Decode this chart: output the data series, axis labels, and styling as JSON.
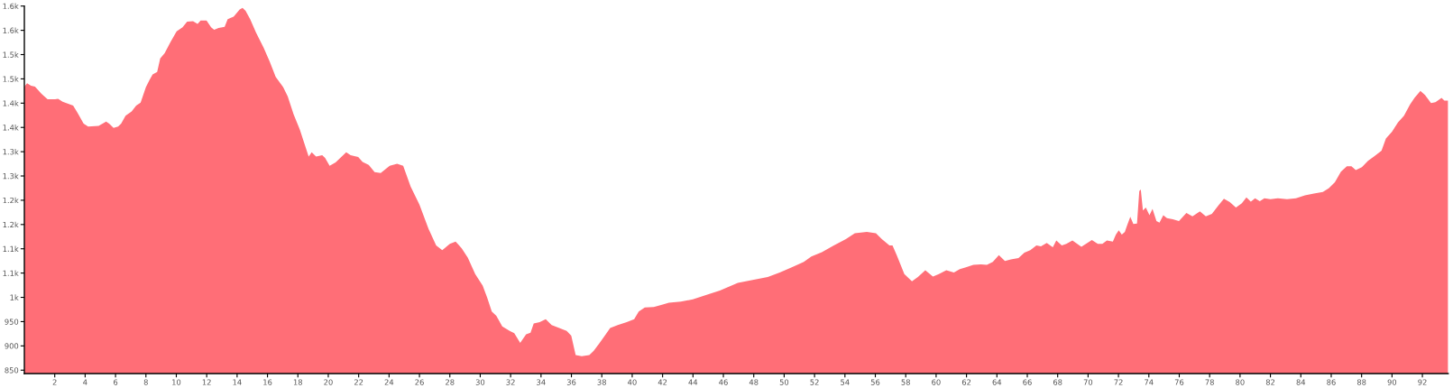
{
  "chart_data": {
    "type": "area",
    "color": "#ff6e77",
    "x": [
      0,
      0.05,
      0.18,
      0.44,
      0.7,
      1.13,
      1.53,
      2.02,
      2.22,
      2.52,
      3.21,
      3.5,
      3.9,
      4.2,
      4.89,
      5.38,
      5.58,
      5.87,
      6.17,
      6.37,
      6.66,
      7.06,
      7.36,
      7.65,
      8.0,
      8.24,
      8.44,
      8.74,
      8.94,
      9.23,
      9.62,
      10.02,
      10.41,
      10.71,
      11.1,
      11.4,
      11.6,
      11.99,
      12.29,
      12.49,
      12.78,
      13.18,
      13.38,
      13.77,
      14.17,
      14.36,
      14.56,
      14.86,
      15.25,
      15.75,
      16.14,
      16.54,
      17.03,
      17.33,
      17.72,
      18.12,
      18.51,
      18.71,
      18.91,
      19.2,
      19.6,
      19.79,
      20.09,
      20.48,
      21.18,
      21.47,
      21.97,
      22.26,
      22.66,
      23.05,
      23.45,
      24.04,
      24.53,
      24.93,
      25.42,
      26.0,
      26.6,
      27.1,
      27.5,
      28.0,
      28.38,
      28.78,
      29.18,
      29.67,
      30.16,
      30.46,
      30.76,
      31.06,
      31.45,
      31.94,
      32.24,
      32.63,
      33.02,
      33.31,
      33.52,
      33.91,
      34.31,
      34.7,
      35.2,
      35.69,
      35.99,
      36.28,
      36.68,
      37.18,
      37.47,
      37.86,
      38.26,
      38.55,
      39.05,
      39.64,
      40.13,
      40.43,
      40.83,
      41.42,
      42.01,
      42.41,
      43.2,
      43.99,
      44.58,
      45.17,
      45.77,
      46.36,
      46.95,
      47.93,
      48.92,
      49.71,
      50.5,
      51.29,
      51.79,
      52.48,
      53.27,
      54.06,
      54.65,
      55.44,
      56.04,
      56.43,
      56.93,
      57.13,
      57.42,
      57.91,
      58.41,
      58.8,
      59.29,
      59.79,
      60.18,
      60.67,
      61.17,
      61.56,
      61.96,
      62.45,
      62.94,
      63.34,
      63.73,
      64.13,
      64.53,
      64.92,
      65.42,
      65.81,
      66.2,
      66.6,
      66.9,
      67.28,
      67.68,
      67.91,
      68.27,
      68.57,
      68.97,
      69.56,
      70.25,
      70.64,
      70.94,
      71.24,
      71.63,
      71.83,
      72.02,
      72.22,
      72.42,
      72.58,
      72.78,
      72.98,
      73.22,
      73.37,
      73.47,
      73.61,
      73.8,
      74.04,
      74.24,
      74.5,
      74.7,
      74.95,
      75.19,
      75.58,
      75.98,
      76.47,
      76.87,
      77.36,
      77.75,
      78.15,
      78.55,
      78.94,
      79.33,
      79.73,
      80.12,
      80.42,
      80.71,
      80.99,
      81.3,
      81.6,
      82.0,
      82.49,
      83.09,
      83.68,
      84.27,
      84.86,
      85.45,
      85.85,
      86.24,
      86.64,
      87.03,
      87.33,
      87.62,
      88.02,
      88.42,
      88.81,
      89.31,
      89.6,
      90.0,
      90.39,
      90.79,
      91.18,
      91.48,
      91.87,
      92.17,
      92.57,
      92.86,
      93.26,
      93.45,
      93.69
    ],
    "values": [
      1433,
      1436,
      1441,
      1436,
      1434,
      1419,
      1408,
      1408,
      1409,
      1403,
      1395,
      1380,
      1358,
      1352,
      1353,
      1362,
      1358,
      1349,
      1352,
      1358,
      1374,
      1383,
      1395,
      1401,
      1433,
      1448,
      1459,
      1464,
      1492,
      1503,
      1526,
      1548,
      1556,
      1568,
      1569,
      1563,
      1570,
      1570,
      1556,
      1551,
      1555,
      1557,
      1573,
      1578,
      1593,
      1596,
      1590,
      1573,
      1545,
      1514,
      1486,
      1454,
      1433,
      1414,
      1377,
      1346,
      1309,
      1290,
      1299,
      1290,
      1293,
      1287,
      1271,
      1278,
      1299,
      1293,
      1289,
      1279,
      1273,
      1258,
      1256,
      1271,
      1275,
      1271,
      1228,
      1191,
      1141,
      1107,
      1097,
      1110,
      1115,
      1101,
      1082,
      1048,
      1024,
      999,
      971,
      962,
      940,
      931,
      926,
      906,
      924,
      927,
      946,
      949,
      955,
      943,
      937,
      931,
      921,
      881,
      879,
      881,
      890,
      906,
      924,
      937,
      943,
      949,
      955,
      971,
      979,
      980,
      985,
      989,
      991,
      996,
      1002,
      1008,
      1014,
      1022,
      1030,
      1036,
      1042,
      1051,
      1062,
      1073,
      1084,
      1093,
      1107,
      1120,
      1132,
      1135,
      1132,
      1120,
      1107,
      1107,
      1086,
      1048,
      1033,
      1042,
      1056,
      1043,
      1048,
      1056,
      1051,
      1058,
      1062,
      1067,
      1068,
      1067,
      1073,
      1087,
      1075,
      1078,
      1081,
      1092,
      1097,
      1107,
      1105,
      1112,
      1103,
      1117,
      1107,
      1110,
      1117,
      1104,
      1118,
      1110,
      1110,
      1117,
      1115,
      1129,
      1138,
      1129,
      1135,
      1149,
      1166,
      1151,
      1152,
      1219,
      1222,
      1179,
      1185,
      1169,
      1182,
      1157,
      1154,
      1169,
      1163,
      1161,
      1157,
      1174,
      1167,
      1177,
      1167,
      1172,
      1188,
      1203,
      1196,
      1185,
      1194,
      1206,
      1197,
      1204,
      1198,
      1204,
      1202,
      1204,
      1202,
      1204,
      1210,
      1214,
      1217,
      1225,
      1237,
      1259,
      1270,
      1270,
      1262,
      1268,
      1281,
      1290,
      1302,
      1327,
      1341,
      1360,
      1374,
      1397,
      1411,
      1425,
      1417,
      1400,
      1402,
      1411,
      1405,
      1405
    ],
    "xlim": [
      0,
      93.7
    ],
    "ylim": [
      843,
      1600
    ],
    "xticks": [
      2,
      4,
      6,
      8,
      10,
      12,
      14,
      16,
      18,
      20,
      22,
      24,
      26,
      28,
      30,
      32,
      34,
      36,
      38,
      40,
      42,
      44,
      46,
      48,
      50,
      52,
      54,
      56,
      58,
      60,
      62,
      64,
      66,
      68,
      70,
      72,
      74,
      76,
      78,
      80,
      82,
      84,
      86,
      88,
      90,
      92
    ],
    "yticks": [
      850,
      900,
      950,
      {
        "value": 1000,
        "label": "1k"
      },
      {
        "value": 1050,
        "label": "1.1k"
      },
      {
        "value": 1100,
        "label": "1.1k"
      },
      {
        "value": 1150,
        "label": "1.2k"
      },
      {
        "value": 1200,
        "label": "1.2k"
      },
      {
        "value": 1250,
        "label": "1.3k"
      },
      {
        "value": 1300,
        "label": "1.3k"
      },
      {
        "value": 1350,
        "label": "1.4k"
      },
      {
        "value": 1400,
        "label": "1.4k"
      },
      {
        "value": 1450,
        "label": "1.5k"
      },
      {
        "value": 1500,
        "label": "1.5k"
      },
      {
        "value": 1550,
        "label": "1.6k"
      },
      {
        "value": 1600,
        "label": "1.6k"
      }
    ],
    "grid": false
  }
}
